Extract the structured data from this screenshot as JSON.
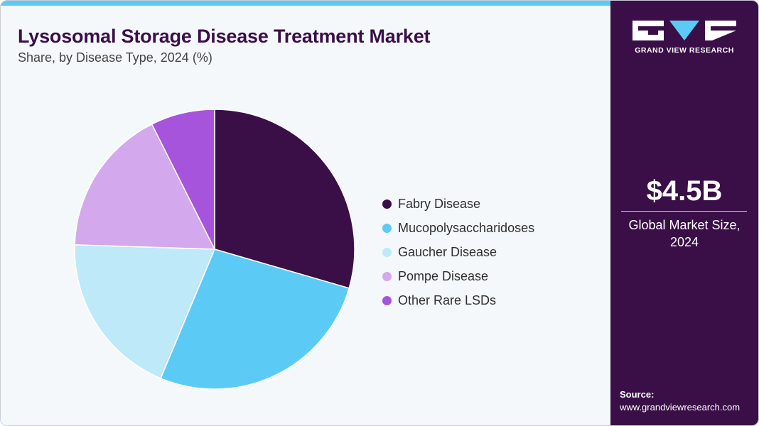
{
  "chart_data": {
    "type": "pie",
    "title": "Lysosomal Storage Disease Treatment Market",
    "subtitle": "Share, by Disease Type, 2024 (%)",
    "categories": [
      "Fabry Disease",
      "Mucopolysaccharidoses",
      "Gaucher Disease",
      "Pompe Disease",
      "Other Rare LSDs"
    ],
    "values": [
      29.5,
      26.8,
      19.2,
      17.1,
      7.4
    ],
    "colors": [
      "#3a0f47",
      "#5bcbf5",
      "#bde9f9",
      "#d4a8ec",
      "#a554db"
    ],
    "legend_position": "right"
  },
  "side_panel": {
    "brand": "GRAND VIEW RESEARCH",
    "market_value": "$4.5B",
    "market_label": "Global Market Size, 2024",
    "source_label": "Source:",
    "source_url": "www.grandviewresearch.com"
  }
}
